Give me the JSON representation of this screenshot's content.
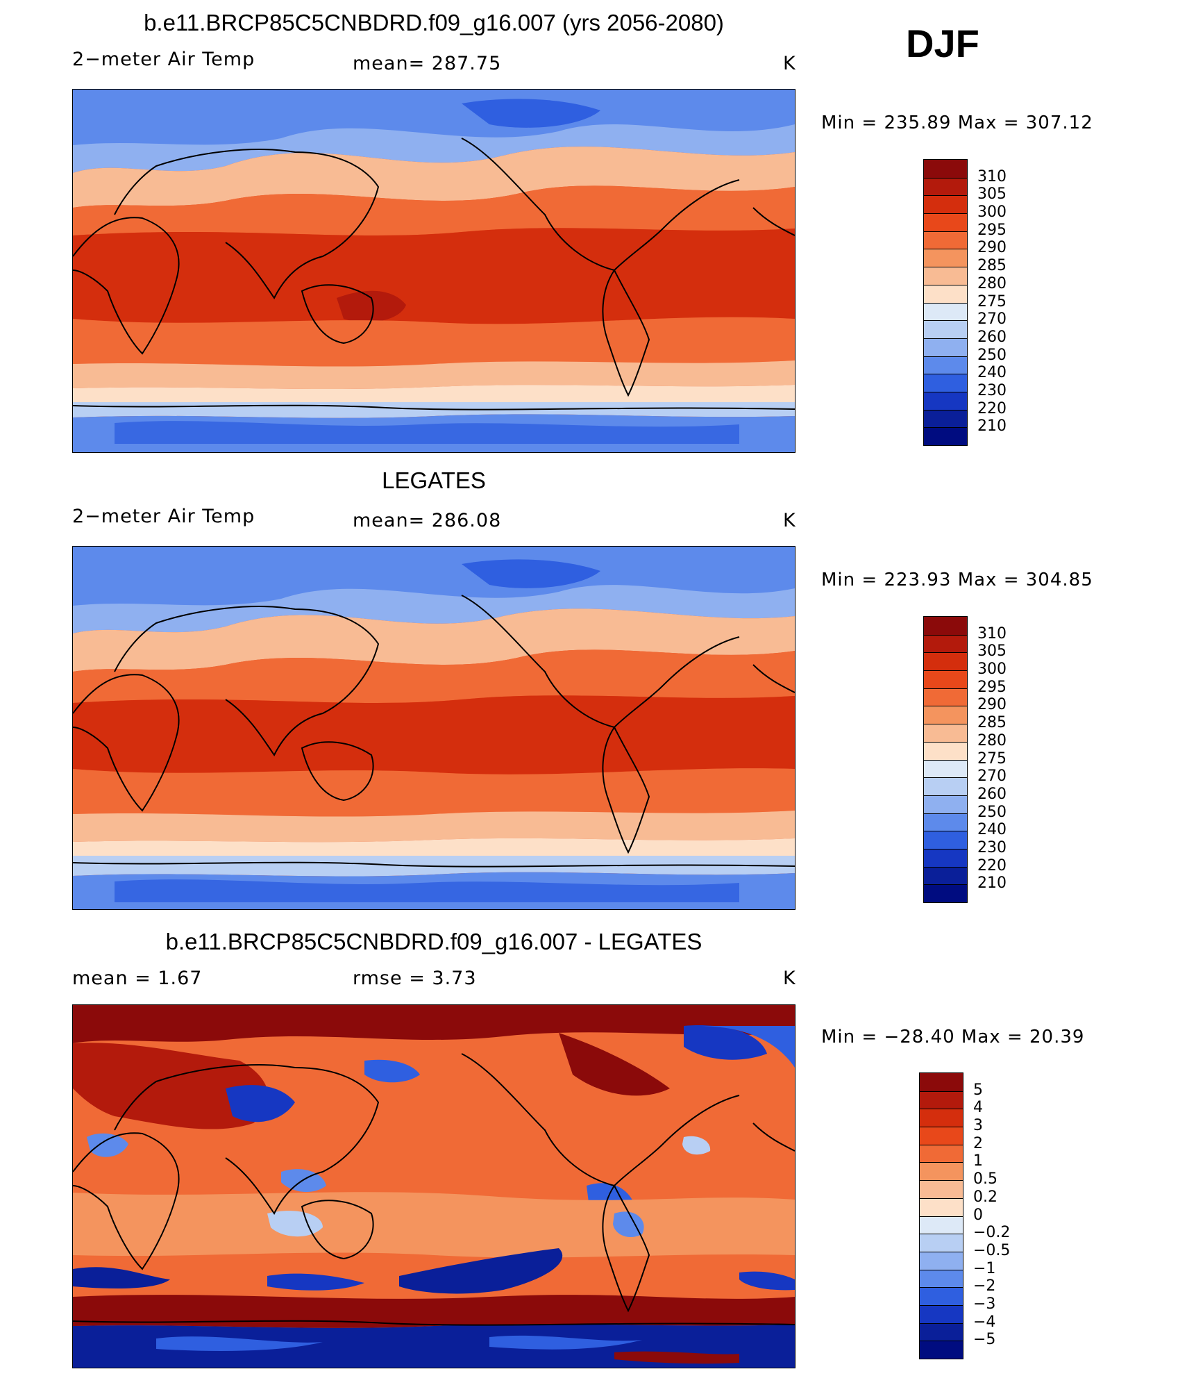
{
  "season": "DJF",
  "panels": [
    {
      "id": "model",
      "title": "b.e11.BRCP85C5CNBDRD.f09_g16.007 (yrs 2056-2080)",
      "left_label": "2−meter Air Temp",
      "center_label": "mean=  287.75",
      "units": "K",
      "minmax": "Min  =  235.89  Max  =  307.12",
      "colorbar": {
        "labels": [
          "310",
          "305",
          "300",
          "295",
          "290",
          "285",
          "280",
          "275",
          "270",
          "260",
          "250",
          "240",
          "230",
          "220",
          "210"
        ],
        "colors": [
          "#8b0a0a",
          "#b31a0c",
          "#d42e0d",
          "#e8481a",
          "#f06a36",
          "#f4945e",
          "#f8bb94",
          "#fde0c8",
          "#dde9f7",
          "#b8cff3",
          "#8fb0f0",
          "#5d8aeb",
          "#2f5fe0",
          "#1637c2",
          "#0a1f99",
          "#000c80"
        ]
      }
    },
    {
      "id": "obs",
      "title": "LEGATES",
      "left_label": "2−meter Air Temp",
      "center_label": "mean=  286.08",
      "units": "K",
      "minmax": "Min  =  223.93  Max  =  304.85",
      "colorbar": {
        "labels": [
          "310",
          "305",
          "300",
          "295",
          "290",
          "285",
          "280",
          "275",
          "270",
          "260",
          "250",
          "240",
          "230",
          "220",
          "210"
        ],
        "colors": [
          "#8b0a0a",
          "#b31a0c",
          "#d42e0d",
          "#e8481a",
          "#f06a36",
          "#f4945e",
          "#f8bb94",
          "#fde0c8",
          "#dde9f7",
          "#b8cff3",
          "#8fb0f0",
          "#5d8aeb",
          "#2f5fe0",
          "#1637c2",
          "#0a1f99",
          "#000c80"
        ]
      }
    },
    {
      "id": "diff",
      "title": "b.e11.BRCP85C5CNBDRD.f09_g16.007 - LEGATES",
      "left_label": "mean  =     1.67",
      "center_label": "rmse  =     3.73",
      "units": "K",
      "minmax": "Min  =  −28.40  Max  =    20.39",
      "colorbar": {
        "labels": [
          "5",
          "4",
          "3",
          "2",
          "1",
          "0.5",
          "0.2",
          "0",
          "−0.2",
          "−0.5",
          "−1",
          "−2",
          "−3",
          "−4",
          "−5"
        ],
        "colors": [
          "#8b0a0a",
          "#b31a0c",
          "#d42e0d",
          "#e8481a",
          "#f06a36",
          "#f4945e",
          "#f8bb94",
          "#fde0c8",
          "#dde9f7",
          "#b8cff3",
          "#8fb0f0",
          "#5d8aeb",
          "#2f5fe0",
          "#1637c2",
          "#0a1f99",
          "#000c80"
        ]
      }
    }
  ]
}
